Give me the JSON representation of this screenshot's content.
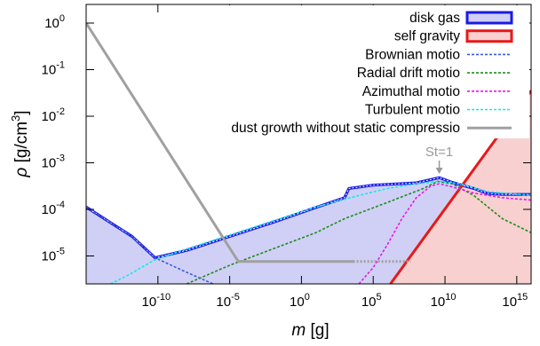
{
  "chart_data": {
    "type": "line",
    "xlabel_var": "m",
    "xlabel_unit": "[g]",
    "ylabel_var": "ρ",
    "ylabel_unit": "[g/cm",
    "ylabel_sup": "3",
    "ylabel_close": "]",
    "xscale": "log",
    "yscale": "log",
    "xlim_exp": [
      -15,
      16
    ],
    "ylim_exp": [
      -5.6,
      0.4
    ],
    "x_ticks": [
      {
        "exp": -10,
        "base": "10",
        "sup": "-10"
      },
      {
        "exp": -5,
        "base": "10",
        "sup": "-5"
      },
      {
        "exp": 0,
        "base": "10",
        "sup": "0"
      },
      {
        "exp": 5,
        "base": "10",
        "sup": "5"
      },
      {
        "exp": 10,
        "base": "10",
        "sup": "10"
      },
      {
        "exp": 15,
        "base": "10",
        "sup": "15"
      }
    ],
    "y_ticks": [
      {
        "exp": 0,
        "base": "10",
        "sup": "0"
      },
      {
        "exp": -1,
        "base": "10",
        "sup": "-1"
      },
      {
        "exp": -2,
        "base": "10",
        "sup": "-2"
      },
      {
        "exp": -3,
        "base": "10",
        "sup": "-3"
      },
      {
        "exp": -4,
        "base": "10",
        "sup": "-4"
      },
      {
        "exp": -5,
        "base": "10",
        "sup": "-5"
      }
    ],
    "legend_position": "top-right",
    "annotation": {
      "text": "St=1",
      "x_exp": 9.6
    },
    "series": [
      {
        "name": "disk gas",
        "kind": "filled",
        "color": "#1a1ae6",
        "fill": "#d0d0f6",
        "log_x": [
          -15,
          -11.8,
          -10.2,
          -8,
          -5,
          -2,
          1,
          3,
          3.3,
          5,
          8,
          9,
          9.6,
          10.5,
          12,
          13,
          14,
          16
        ],
        "log_y": [
          -3.95,
          -4.58,
          -5.04,
          -4.88,
          -4.58,
          -4.28,
          -3.96,
          -3.75,
          -3.55,
          -3.48,
          -3.43,
          -3.36,
          -3.32,
          -3.42,
          -3.55,
          -3.66,
          -3.68,
          -3.68
        ]
      },
      {
        "name": "self gravity",
        "kind": "filled",
        "color": "#e61a1a",
        "fill": "#f8d0d0",
        "log_x": [
          6.2,
          16
        ],
        "log_y": [
          -5.6,
          -1.45
        ]
      },
      {
        "name": "Brownian motion",
        "kind": "dotted",
        "color": "#3b5bdb",
        "log_x": [
          -15,
          -11.8,
          -10.2,
          -8,
          -6
        ],
        "log_y": [
          -3.95,
          -4.58,
          -5.04,
          -5.35,
          -5.62
        ]
      },
      {
        "name": "Radial drift motion",
        "kind": "dotted",
        "color": "#1e8c1e",
        "log_x": [
          -8,
          -5,
          -2,
          1,
          3,
          6,
          8.5,
          9.5,
          10.5,
          12,
          14,
          16
        ],
        "log_y": [
          -5.6,
          -5.2,
          -4.85,
          -4.5,
          -4.2,
          -3.85,
          -3.55,
          -3.4,
          -3.45,
          -3.7,
          -4.2,
          -4.5
        ]
      },
      {
        "name": "Azimuthal motion",
        "kind": "dotted",
        "color": "#e619e6",
        "log_x": [
          4,
          5,
          6,
          7,
          8,
          9,
          9.6,
          10.3,
          12,
          14,
          16
        ],
        "log_y": [
          -5.6,
          -5.25,
          -4.75,
          -4.2,
          -3.75,
          -3.5,
          -3.45,
          -3.5,
          -3.65,
          -3.75,
          -3.8
        ]
      },
      {
        "name": "Turbulent motion",
        "kind": "dotted",
        "color": "#19e6e6",
        "log_x": [
          -13.3,
          -12,
          -10.2,
          -8,
          -5,
          -2,
          1,
          4,
          6,
          8,
          9.6,
          11,
          13,
          16
        ],
        "log_y": [
          -5.6,
          -5.4,
          -5.08,
          -4.85,
          -4.55,
          -4.25,
          -3.95,
          -3.7,
          -3.55,
          -3.45,
          -3.4,
          -3.45,
          -3.62,
          -3.7
        ]
      },
      {
        "name": "dust growth without static compression",
        "legend_label": "dust growth without static compressio",
        "kind": "solid-gray",
        "color": "#a0a0a0",
        "log_x": [
          -15,
          -4.4,
          3.6
        ],
        "log_y": [
          0,
          -5.12,
          -5.12
        ],
        "dotted_to_exp": 7.6
      }
    ],
    "legend": [
      {
        "label": "disk gas",
        "kind": "box",
        "series": 0
      },
      {
        "label": "self gravity",
        "kind": "box",
        "series": 1
      },
      {
        "label": "Brownian motion",
        "label_display": "Brownian motio",
        "kind": "line",
        "series": 2
      },
      {
        "label": "Radial drift motion",
        "label_display": "Radial drift motio",
        "kind": "line",
        "series": 3
      },
      {
        "label": "Azimuthal motion",
        "label_display": "Azimuthal motio",
        "kind": "line",
        "series": 4
      },
      {
        "label": "Turbulent motion",
        "label_display": "Turbulent motio",
        "kind": "line",
        "series": 5
      },
      {
        "label": "dust growth without static compression",
        "label_display": "dust growth without static compressio",
        "kind": "line",
        "series": 6
      }
    ]
  }
}
